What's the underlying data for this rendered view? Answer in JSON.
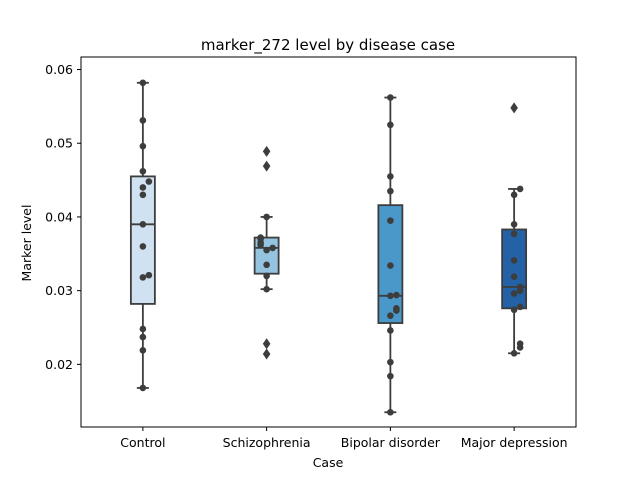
{
  "chart_data": {
    "type": "box",
    "title": "marker_272 level by disease case",
    "xlabel": "Case",
    "ylabel": "Marker level",
    "ylim": [
      0.0115,
      0.0617
    ],
    "yticks": [
      0.02,
      0.03,
      0.04,
      0.05,
      0.06
    ],
    "ytick_labels": [
      "0.02",
      "0.03",
      "0.04",
      "0.05",
      "0.06"
    ],
    "categories": [
      "Control",
      "Schizophrenia",
      "Bipolar disorder",
      "Major depression"
    ],
    "colors": [
      "#d0e1f2",
      "#94c4df",
      "#4a98c9",
      "#2362a6"
    ],
    "grid": false,
    "boxes": [
      {
        "category": "Control",
        "q1": 0.0282,
        "median": 0.039,
        "q3": 0.0455,
        "whisker_low": 0.0168,
        "whisker_high": 0.0582,
        "outliers": [],
        "points": [
          0.0582,
          0.0531,
          0.0496,
          0.0462,
          0.0448,
          0.044,
          0.043,
          0.039,
          0.036,
          0.0321,
          0.0318,
          0.0248,
          0.0237,
          0.0219,
          0.0168
        ]
      },
      {
        "category": "Schizophrenia",
        "q1": 0.0323,
        "median": 0.0358,
        "q3": 0.0372,
        "whisker_low": 0.0302,
        "whisker_high": 0.04,
        "outliers": [
          0.0489,
          0.0469,
          0.0228,
          0.0214
        ],
        "points": [
          0.04,
          0.0372,
          0.037,
          0.0365,
          0.0362,
          0.0358,
          0.0355,
          0.0335,
          0.032,
          0.0302
        ]
      },
      {
        "category": "Bipolar disorder",
        "q1": 0.0256,
        "median": 0.0293,
        "q3": 0.0416,
        "whisker_low": 0.0135,
        "whisker_high": 0.0562,
        "outliers": [],
        "points": [
          0.0562,
          0.0525,
          0.0455,
          0.0435,
          0.0395,
          0.0334,
          0.0294,
          0.0293,
          0.0276,
          0.0273,
          0.0266,
          0.0246,
          0.0203,
          0.0184,
          0.0135
        ]
      },
      {
        "category": "Major depression",
        "q1": 0.0276,
        "median": 0.0305,
        "q3": 0.0383,
        "whisker_low": 0.0215,
        "whisker_high": 0.0438,
        "outliers": [
          0.0548
        ],
        "points": [
          0.0438,
          0.043,
          0.039,
          0.0377,
          0.0341,
          0.0319,
          0.0305,
          0.03,
          0.0296,
          0.0278,
          0.0274,
          0.0228,
          0.0223,
          0.0215
        ]
      }
    ]
  }
}
